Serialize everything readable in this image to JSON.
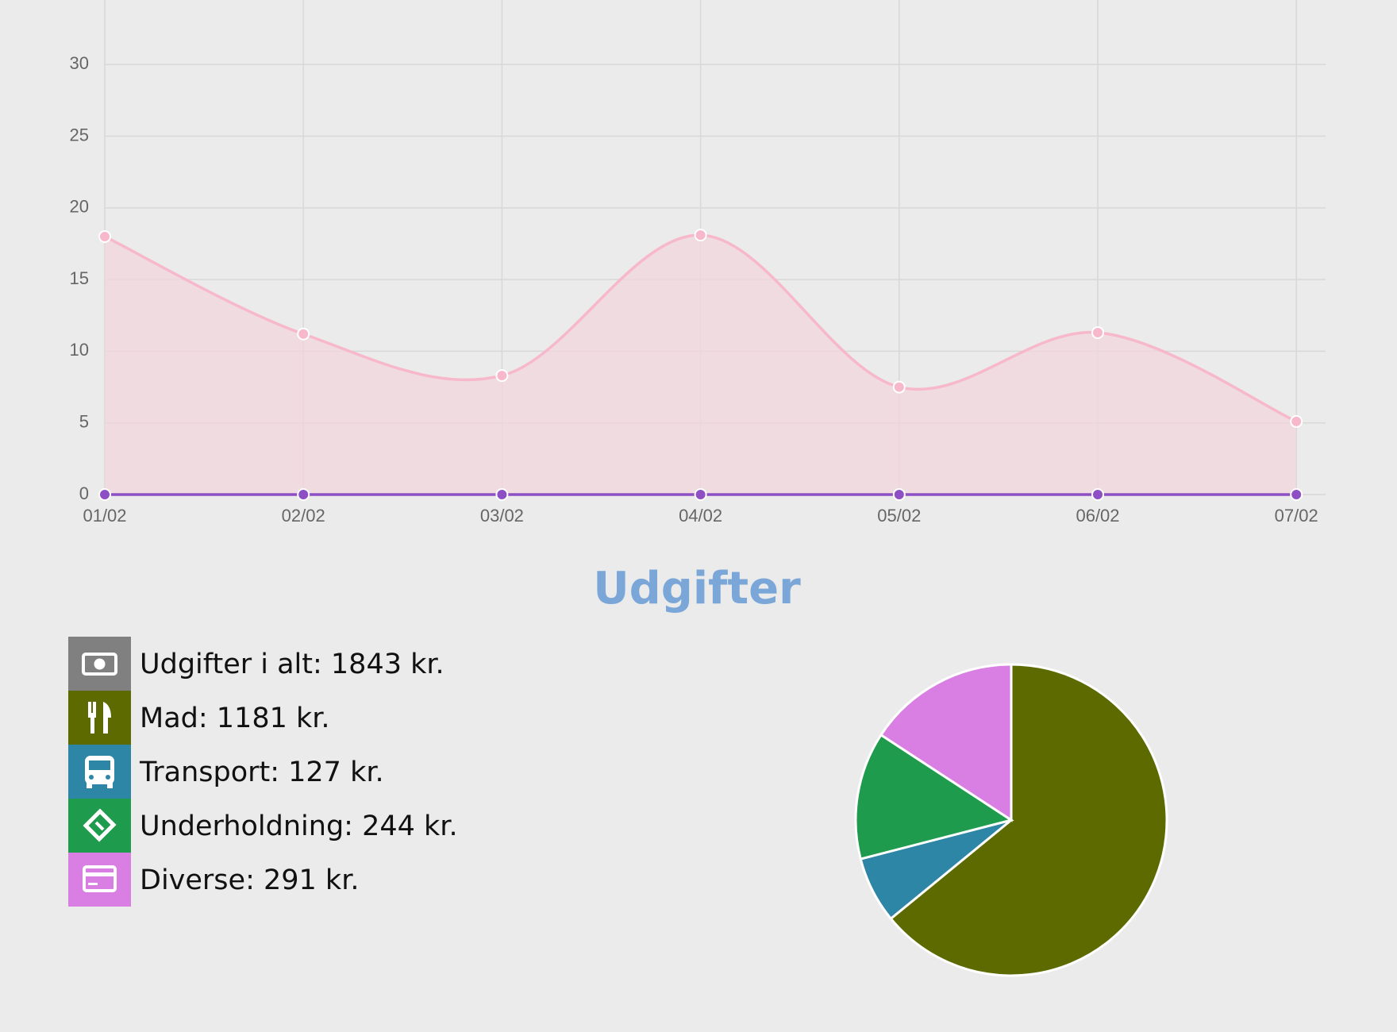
{
  "chart_data": [
    {
      "type": "line",
      "categories": [
        "01/02",
        "02/02",
        "03/02",
        "04/02",
        "05/02",
        "06/02",
        "07/02"
      ],
      "series": [
        {
          "color": "#f7b8cc",
          "fill": "#f2d6de",
          "area": true,
          "values": [
            18,
            11.2,
            8.3,
            18.1,
            7.5,
            11.3,
            5.1
          ]
        },
        {
          "color": "#8e4fc4",
          "area": false,
          "values": [
            0,
            0,
            0,
            0,
            0,
            0,
            0
          ]
        }
      ],
      "ylim": [
        0,
        34.5
      ],
      "yticks": [
        0,
        5,
        10,
        15,
        20,
        25,
        30
      ],
      "grid": true
    },
    {
      "type": "pie",
      "title": "Udgifter",
      "categories": [
        "Mad",
        "Transport",
        "Underholdning",
        "Diverse"
      ],
      "values": [
        1181,
        127,
        244,
        291
      ],
      "colors": [
        "#5c6a00",
        "#2e86a6",
        "#1f9b4d",
        "#d97fe3"
      ]
    }
  ],
  "summary": [
    "Udgifter i alt: 1843 kr.",
    "Mad: 1181 kr.",
    "Transport: 127 kr.",
    "Underholdning: 244 kr.",
    "Diverse: 291 kr."
  ]
}
